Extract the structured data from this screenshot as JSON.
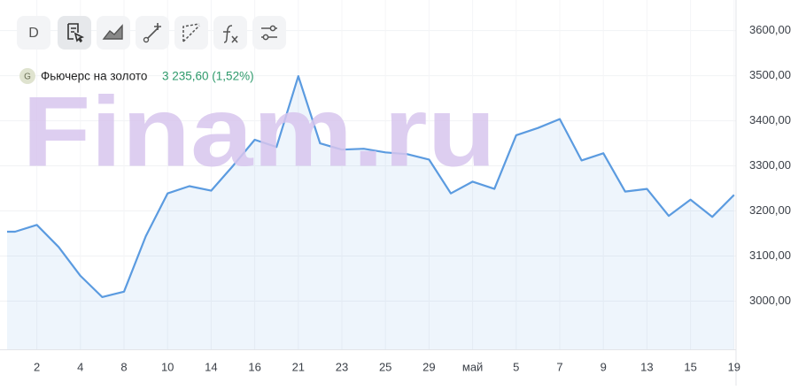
{
  "toolbar": {
    "interval": "D"
  },
  "legend": {
    "badge": "G",
    "name": "Фьючерс на золото",
    "last": "3 235,60 (1,52%)"
  },
  "watermark": "Finam.ru",
  "chart_data": {
    "type": "line",
    "categories": [
      null,
      "2",
      null,
      "4",
      null,
      "8",
      null,
      "10",
      null,
      "14",
      null,
      "16",
      null,
      "21",
      null,
      "23",
      null,
      "25",
      null,
      "29",
      null,
      "май",
      null,
      "5",
      null,
      "7",
      null,
      "9",
      null,
      "13",
      null,
      "15",
      null,
      "19"
    ],
    "series": [
      {
        "name": "Фьючерс на золото",
        "color": "#5b9be0",
        "values": [
          3154,
          3169,
          3120,
          3056,
          3009,
          3021,
          3144,
          3239,
          3255,
          3245,
          3300,
          3358,
          3342,
          3499,
          3350,
          3336,
          3338,
          3330,
          3326,
          3314,
          3239,
          3265,
          3249,
          3368,
          3384,
          3404,
          3312,
          3328,
          3243,
          3249,
          3189,
          3225,
          3187,
          3235.6
        ]
      }
    ],
    "ylim": [
      2893,
      3668
    ],
    "yticks": [
      {
        "value": 3000,
        "label": "3000,00"
      },
      {
        "value": 3100,
        "label": "3100,00"
      },
      {
        "value": 3200,
        "label": "3200,00"
      },
      {
        "value": 3300,
        "label": "3300,00"
      },
      {
        "value": 3400,
        "label": "3400,00"
      },
      {
        "value": 3500,
        "label": "3500,00"
      },
      {
        "value": 3600,
        "label": "3600,00"
      }
    ],
    "grid": true
  }
}
